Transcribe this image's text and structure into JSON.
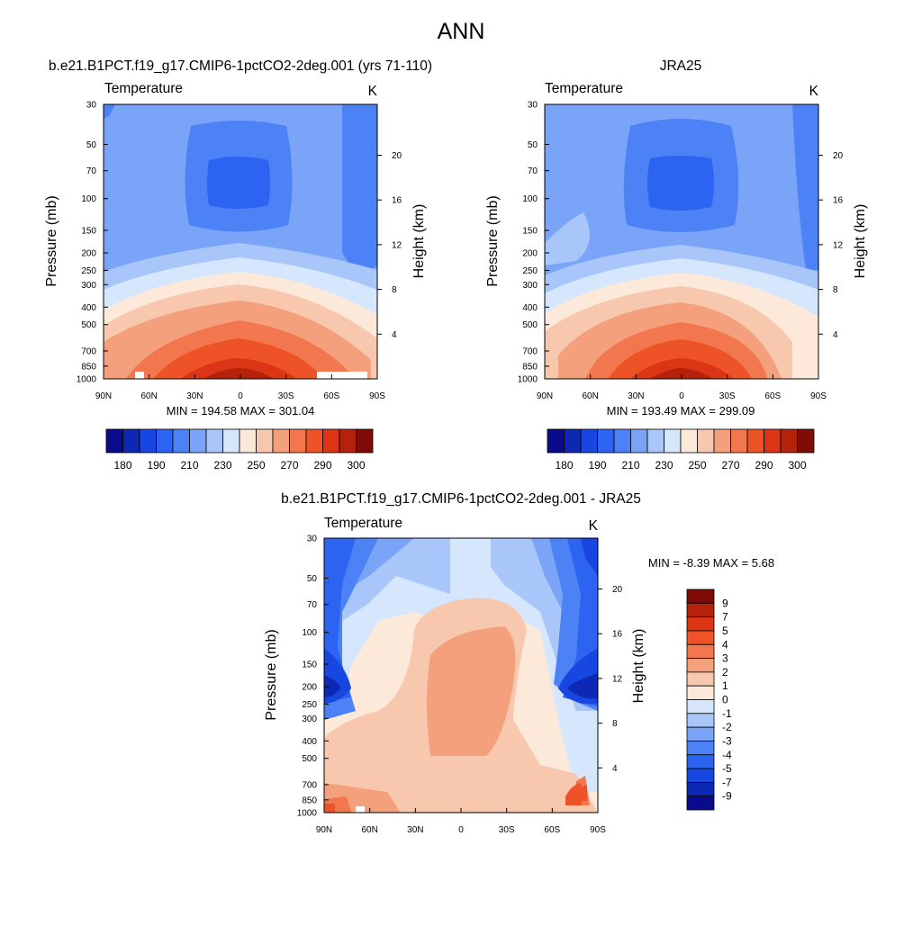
{
  "figure": {
    "title": "ANN"
  },
  "colors": {
    "left_ramp": [
      "#0a0a8c",
      "#0c28b4",
      "#1746e0",
      "#2c63f0",
      "#4c82f6",
      "#7aa4f8",
      "#a9c6fa",
      "#d5e6fd",
      "#fde9d9",
      "#f8c8ae",
      "#f4a07c",
      "#f2774e",
      "#ee5328",
      "#dc3516",
      "#b4220c",
      "#7e0b05"
    ],
    "diff_ramp": [
      "#0a0a8c",
      "#0c28b4",
      "#1746e0",
      "#2c63f0",
      "#4c82f6",
      "#7aa4f8",
      "#a9c6fa",
      "#d5e6fd",
      "#fde9d9",
      "#f8c8ae",
      "#f4a07c",
      "#f2774e",
      "#ee5328",
      "#dc3516",
      "#b4220c",
      "#7e0b05"
    ]
  },
  "chart_data": [
    {
      "type": "heatmap",
      "title": "b.e21.B1PCT.f19_g17.CMIP6-1pctCO2-2deg.001 (yrs 71-110)",
      "field_label": "Temperature",
      "units": "K",
      "ylabel": "Pressure (mb)",
      "y2label": "Height (km)",
      "x_ticks": [
        "90N",
        "60N",
        "30N",
        "0",
        "30S",
        "60S",
        "90S"
      ],
      "x_range": [
        90,
        -90
      ],
      "y_ticks": [
        30,
        50,
        70,
        100,
        150,
        200,
        250,
        300,
        400,
        500,
        700,
        850,
        1000
      ],
      "y_range": [
        30,
        1000
      ],
      "height_ticks": [
        20,
        16,
        12,
        8,
        4
      ],
      "min": 194.58,
      "max": 301.04,
      "stats_text": "MIN = 194.58  MAX = 301.04",
      "colorbar": {
        "orientation": "horizontal",
        "levels": [
          180,
          185,
          190,
          200,
          210,
          220,
          230,
          240,
          250,
          260,
          270,
          280,
          290,
          295,
          300
        ],
        "tick_labels": [
          "180",
          "190",
          "210",
          "230",
          "250",
          "270",
          "290",
          "300"
        ]
      }
    },
    {
      "type": "heatmap",
      "title": "JRA25",
      "field_label": "Temperature",
      "units": "K",
      "ylabel": "Pressure (mb)",
      "y2label": "Height (km)",
      "x_ticks": [
        "90N",
        "60N",
        "30N",
        "0",
        "30S",
        "60S",
        "90S"
      ],
      "x_range": [
        90,
        -90
      ],
      "y_ticks": [
        30,
        50,
        70,
        100,
        150,
        200,
        250,
        300,
        400,
        500,
        700,
        850,
        1000
      ],
      "y_range": [
        30,
        1000
      ],
      "height_ticks": [
        20,
        16,
        12,
        8,
        4
      ],
      "min": 193.49,
      "max": 299.09,
      "stats_text": "MIN = 193.49  MAX = 299.09",
      "colorbar": {
        "orientation": "horizontal",
        "levels": [
          180,
          185,
          190,
          200,
          210,
          220,
          230,
          240,
          250,
          260,
          270,
          280,
          290,
          295,
          300
        ],
        "tick_labels": [
          "180",
          "190",
          "210",
          "230",
          "250",
          "270",
          "290",
          "300"
        ]
      }
    },
    {
      "type": "heatmap",
      "title": "b.e21.B1PCT.f19_g17.CMIP6-1pctCO2-2deg.001 - JRA25",
      "field_label": "Temperature",
      "units": "K",
      "ylabel": "Pressure (mb)",
      "y2label": "Height (km)",
      "x_ticks": [
        "90N",
        "60N",
        "30N",
        "0",
        "30S",
        "60S",
        "90S"
      ],
      "x_range": [
        90,
        -90
      ],
      "y_ticks": [
        30,
        50,
        70,
        100,
        150,
        200,
        250,
        300,
        400,
        500,
        700,
        850,
        1000
      ],
      "y_range": [
        30,
        1000
      ],
      "height_ticks": [
        20,
        16,
        12,
        8,
        4
      ],
      "min": -8.39,
      "max": 5.68,
      "stats_text": "MIN =  -8.39  MAX =   5.68",
      "colorbar": {
        "orientation": "vertical",
        "levels": [
          9,
          7,
          5,
          4,
          3,
          2,
          1,
          0,
          -1,
          -2,
          -3,
          -4,
          -5,
          -7,
          -9
        ],
        "tick_labels": [
          "9",
          "7",
          "5",
          "4",
          "3",
          "2",
          "1",
          "0",
          "-1",
          "-2",
          "-3",
          "-4",
          "-5",
          "-7",
          "-9"
        ]
      }
    }
  ]
}
